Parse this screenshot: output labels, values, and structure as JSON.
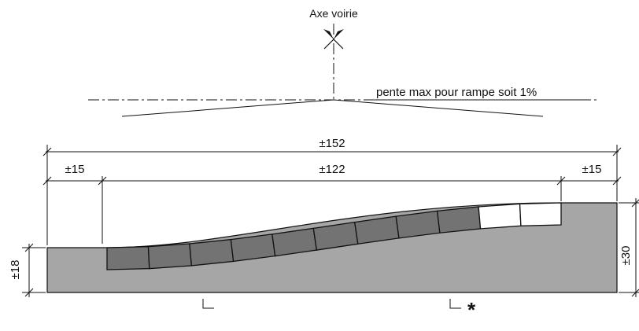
{
  "axis": {
    "label": "Axe voirie",
    "slope_note": "pente max pour rampe soit 1%"
  },
  "dimensions": {
    "total_width": "±152",
    "left_margin": "±15",
    "ramp_width": "±122",
    "right_margin": "±15",
    "left_height": "±18",
    "right_height": "±30"
  },
  "marker": "*",
  "colors": {
    "slab": "#a6a6a6",
    "paver_dark": "#737373",
    "paver_light": "#ffffff",
    "line": "#111111"
  }
}
